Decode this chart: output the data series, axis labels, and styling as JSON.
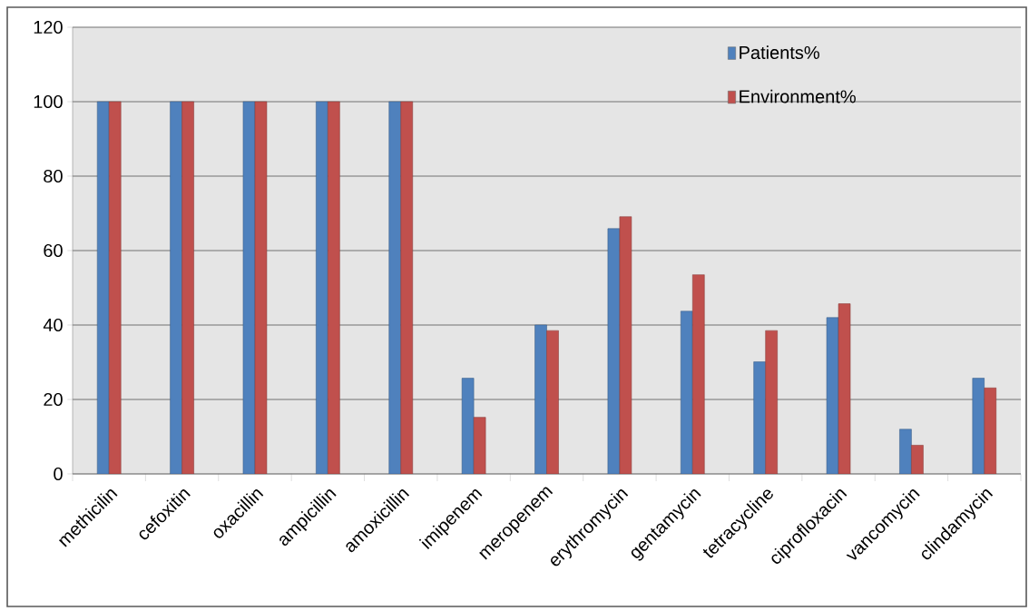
{
  "chart_data": {
    "type": "bar",
    "categories": [
      "methicilin",
      "cefoxitin",
      "oxacillin",
      "ampicillin",
      "amoxicillin",
      "imipenem",
      "meropenem",
      "erythromycin",
      "gentamycin",
      "tetracycline",
      "ciprofloxacin",
      "vancomycin",
      "clindamycin"
    ],
    "series": [
      {
        "name": "Patients%",
        "color": "#4f81bd",
        "values": [
          100,
          100,
          100,
          100,
          100,
          25.7,
          40,
          65.9,
          43.7,
          30.1,
          42,
          12,
          25.7
        ]
      },
      {
        "name": "Environment%",
        "color": "#c0504d",
        "values": [
          100,
          100,
          100,
          100,
          100,
          15.2,
          38.5,
          69.1,
          53.5,
          38.5,
          45.7,
          7.7,
          23.1
        ]
      }
    ],
    "ylim": [
      0,
      120
    ],
    "yticks": [
      0,
      20,
      40,
      60,
      80,
      100,
      120
    ],
    "grid": "y",
    "legend": "top right"
  }
}
